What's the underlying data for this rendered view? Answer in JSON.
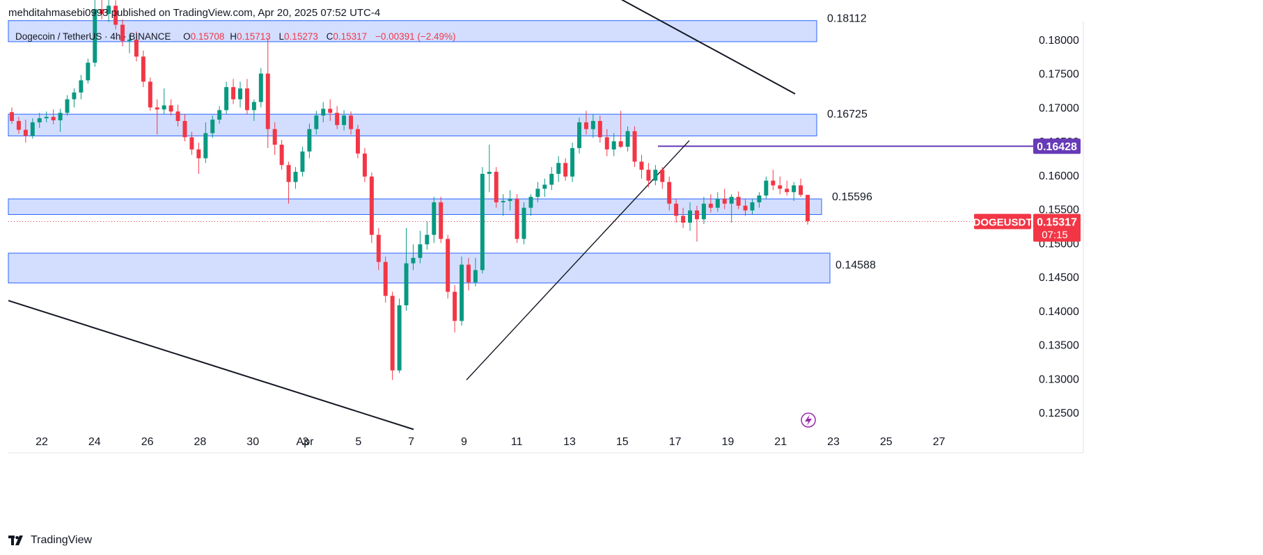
{
  "header": {
    "published_by": "mehditahmasebi0993 published on TradingView.com, Apr 20, 2025 07:52 UTC-4"
  },
  "legend": {
    "symbol": "Dogecoin / TetherUS · 4h · BINANCE",
    "o_label": "O",
    "o_value": "0.15708",
    "h_label": "H",
    "h_value": "0.15713",
    "l_label": "L",
    "l_value": "0.15273",
    "c_label": "C",
    "c_value": "0.15317",
    "change": "−0.00391 (−2.49%)"
  },
  "chart_data": {
    "type": "candlestick",
    "symbol": "DOGEUSDT",
    "ylim": [
      0.1215,
      0.1855
    ],
    "y_ticks": [
      "0.18000",
      "0.17500",
      "0.17000",
      "0.16500",
      "0.16000",
      "0.15500",
      "0.15000",
      "0.14500",
      "0.14000",
      "0.13500",
      "0.13000",
      "0.12500"
    ],
    "x_ticks": [
      "22",
      "24",
      "26",
      "28",
      "30",
      "Apr",
      "3",
      "5",
      "7",
      "9",
      "11",
      "13",
      "15",
      "17",
      "19",
      "21",
      "23",
      "25",
      "27"
    ],
    "zones": [
      {
        "from": 0.1797,
        "to": 0.1828,
        "label": "0.18112"
      },
      {
        "from": 0.1658,
        "to": 0.169,
        "label": "0.16725"
      },
      {
        "from": 0.1542,
        "to": 0.1565,
        "label": "0.15596"
      },
      {
        "from": 0.1441,
        "to": 0.1485,
        "label": "0.14588"
      }
    ],
    "horizontal_line": {
      "value": 0.16428,
      "label": "0.16428",
      "color": "#673ab7"
    },
    "last_price": {
      "value": 0.15317,
      "label": "0.15317",
      "symbol": "DOGEUSDT",
      "countdown": "07:15",
      "color": "#f23645"
    },
    "up_color": "#089981",
    "down_color": "#f23645",
    "candles": [
      {
        "o": 0.1693,
        "h": 0.17,
        "l": 0.1676,
        "c": 0.168
      },
      {
        "o": 0.168,
        "h": 0.1686,
        "l": 0.1661,
        "c": 0.1667
      },
      {
        "o": 0.1667,
        "h": 0.1682,
        "l": 0.1648,
        "c": 0.1658
      },
      {
        "o": 0.1658,
        "h": 0.1684,
        "l": 0.1654,
        "c": 0.1678
      },
      {
        "o": 0.1678,
        "h": 0.1692,
        "l": 0.167,
        "c": 0.1684
      },
      {
        "o": 0.1684,
        "h": 0.1694,
        "l": 0.1678,
        "c": 0.1686
      },
      {
        "o": 0.1686,
        "h": 0.1697,
        "l": 0.1675,
        "c": 0.1681
      },
      {
        "o": 0.1681,
        "h": 0.1698,
        "l": 0.1664,
        "c": 0.1692
      },
      {
        "o": 0.1692,
        "h": 0.1718,
        "l": 0.1688,
        "c": 0.1712
      },
      {
        "o": 0.1712,
        "h": 0.1728,
        "l": 0.17,
        "c": 0.1722
      },
      {
        "o": 0.1722,
        "h": 0.1748,
        "l": 0.1712,
        "c": 0.174
      },
      {
        "o": 0.174,
        "h": 0.1772,
        "l": 0.1735,
        "c": 0.1766
      },
      {
        "o": 0.1766,
        "h": 0.186,
        "l": 0.176,
        "c": 0.1845
      },
      {
        "o": 0.1845,
        "h": 0.1865,
        "l": 0.183,
        "c": 0.1838
      },
      {
        "o": 0.1838,
        "h": 0.1862,
        "l": 0.1826,
        "c": 0.185
      },
      {
        "o": 0.185,
        "h": 0.1858,
        "l": 0.1815,
        "c": 0.1822
      },
      {
        "o": 0.1822,
        "h": 0.183,
        "l": 0.179,
        "c": 0.1798
      },
      {
        "o": 0.1798,
        "h": 0.1808,
        "l": 0.178,
        "c": 0.18
      },
      {
        "o": 0.18,
        "h": 0.1812,
        "l": 0.1768,
        "c": 0.1775
      },
      {
        "o": 0.1775,
        "h": 0.1784,
        "l": 0.173,
        "c": 0.1738
      },
      {
        "o": 0.1738,
        "h": 0.1744,
        "l": 0.1695,
        "c": 0.17
      },
      {
        "o": 0.17,
        "h": 0.1712,
        "l": 0.166,
        "c": 0.1697
      },
      {
        "o": 0.1697,
        "h": 0.1728,
        "l": 0.169,
        "c": 0.1703
      },
      {
        "o": 0.1703,
        "h": 0.1712,
        "l": 0.1688,
        "c": 0.1694
      },
      {
        "o": 0.1694,
        "h": 0.1704,
        "l": 0.1672,
        "c": 0.168
      },
      {
        "o": 0.168,
        "h": 0.169,
        "l": 0.165,
        "c": 0.1656
      },
      {
        "o": 0.1656,
        "h": 0.1664,
        "l": 0.163,
        "c": 0.1638
      },
      {
        "o": 0.1638,
        "h": 0.1648,
        "l": 0.1602,
        "c": 0.1625
      },
      {
        "o": 0.1625,
        "h": 0.1678,
        "l": 0.1618,
        "c": 0.1662
      },
      {
        "o": 0.1662,
        "h": 0.1688,
        "l": 0.1655,
        "c": 0.1682
      },
      {
        "o": 0.1682,
        "h": 0.1702,
        "l": 0.1676,
        "c": 0.1696
      },
      {
        "o": 0.1696,
        "h": 0.1738,
        "l": 0.169,
        "c": 0.173
      },
      {
        "o": 0.173,
        "h": 0.1742,
        "l": 0.1705,
        "c": 0.1712
      },
      {
        "o": 0.1712,
        "h": 0.1738,
        "l": 0.17,
        "c": 0.1728
      },
      {
        "o": 0.1728,
        "h": 0.1742,
        "l": 0.169,
        "c": 0.1696
      },
      {
        "o": 0.1696,
        "h": 0.1712,
        "l": 0.168,
        "c": 0.1708
      },
      {
        "o": 0.1708,
        "h": 0.1758,
        "l": 0.17,
        "c": 0.175
      },
      {
        "o": 0.175,
        "h": 0.1802,
        "l": 0.164,
        "c": 0.1668
      },
      {
        "o": 0.1668,
        "h": 0.1678,
        "l": 0.163,
        "c": 0.1645
      },
      {
        "o": 0.1645,
        "h": 0.1652,
        "l": 0.1608,
        "c": 0.1615
      },
      {
        "o": 0.1615,
        "h": 0.162,
        "l": 0.1558,
        "c": 0.159
      },
      {
        "o": 0.159,
        "h": 0.1612,
        "l": 0.158,
        "c": 0.1605
      },
      {
        "o": 0.1605,
        "h": 0.1642,
        "l": 0.1598,
        "c": 0.1635
      },
      {
        "o": 0.1635,
        "h": 0.1676,
        "l": 0.1625,
        "c": 0.1668
      },
      {
        "o": 0.1668,
        "h": 0.1695,
        "l": 0.166,
        "c": 0.1688
      },
      {
        "o": 0.1688,
        "h": 0.1708,
        "l": 0.1678,
        "c": 0.1698
      },
      {
        "o": 0.1698,
        "h": 0.1712,
        "l": 0.168,
        "c": 0.1692
      },
      {
        "o": 0.1692,
        "h": 0.1702,
        "l": 0.1668,
        "c": 0.1674
      },
      {
        "o": 0.1674,
        "h": 0.1696,
        "l": 0.1666,
        "c": 0.1688
      },
      {
        "o": 0.1688,
        "h": 0.1694,
        "l": 0.166,
        "c": 0.1668
      },
      {
        "o": 0.1668,
        "h": 0.1674,
        "l": 0.1625,
        "c": 0.1632
      },
      {
        "o": 0.1632,
        "h": 0.164,
        "l": 0.159,
        "c": 0.1598
      },
      {
        "o": 0.1598,
        "h": 0.1604,
        "l": 0.15,
        "c": 0.1512
      },
      {
        "o": 0.1512,
        "h": 0.1522,
        "l": 0.146,
        "c": 0.1472
      },
      {
        "o": 0.1472,
        "h": 0.148,
        "l": 0.1412,
        "c": 0.1422
      },
      {
        "o": 0.1422,
        "h": 0.1428,
        "l": 0.1298,
        "c": 0.1312
      },
      {
        "o": 0.1312,
        "h": 0.1418,
        "l": 0.1308,
        "c": 0.1408
      },
      {
        "o": 0.1408,
        "h": 0.1522,
        "l": 0.14,
        "c": 0.147
      },
      {
        "o": 0.147,
        "h": 0.1498,
        "l": 0.146,
        "c": 0.1478
      },
      {
        "o": 0.1478,
        "h": 0.1518,
        "l": 0.147,
        "c": 0.1498
      },
      {
        "o": 0.1498,
        "h": 0.1532,
        "l": 0.149,
        "c": 0.1512
      },
      {
        "o": 0.1512,
        "h": 0.1568,
        "l": 0.15,
        "c": 0.156
      },
      {
        "o": 0.156,
        "h": 0.1568,
        "l": 0.15,
        "c": 0.1506
      },
      {
        "o": 0.1506,
        "h": 0.1512,
        "l": 0.1418,
        "c": 0.1428
      },
      {
        "o": 0.1428,
        "h": 0.1438,
        "l": 0.1368,
        "c": 0.1385
      },
      {
        "o": 0.1385,
        "h": 0.148,
        "l": 0.1378,
        "c": 0.1468
      },
      {
        "o": 0.1468,
        "h": 0.1478,
        "l": 0.143,
        "c": 0.1442
      },
      {
        "o": 0.1442,
        "h": 0.1478,
        "l": 0.1436,
        "c": 0.146
      },
      {
        "o": 0.146,
        "h": 0.1612,
        "l": 0.1455,
        "c": 0.1602
      },
      {
        "o": 0.1602,
        "h": 0.1645,
        "l": 0.1575,
        "c": 0.1605
      },
      {
        "o": 0.1605,
        "h": 0.1612,
        "l": 0.1552,
        "c": 0.156
      },
      {
        "o": 0.156,
        "h": 0.1572,
        "l": 0.154,
        "c": 0.1562
      },
      {
        "o": 0.1562,
        "h": 0.1578,
        "l": 0.1548,
        "c": 0.1565
      },
      {
        "o": 0.1565,
        "h": 0.1572,
        "l": 0.15,
        "c": 0.1506
      },
      {
        "o": 0.1506,
        "h": 0.156,
        "l": 0.1498,
        "c": 0.1552
      },
      {
        "o": 0.1552,
        "h": 0.1572,
        "l": 0.154,
        "c": 0.1568
      },
      {
        "o": 0.1568,
        "h": 0.159,
        "l": 0.156,
        "c": 0.158
      },
      {
        "o": 0.158,
        "h": 0.1595,
        "l": 0.1568,
        "c": 0.1586
      },
      {
        "o": 0.1586,
        "h": 0.1612,
        "l": 0.1578,
        "c": 0.1602
      },
      {
        "o": 0.1602,
        "h": 0.1628,
        "l": 0.159,
        "c": 0.1618
      },
      {
        "o": 0.1618,
        "h": 0.1625,
        "l": 0.1592,
        "c": 0.1598
      },
      {
        "o": 0.1598,
        "h": 0.1648,
        "l": 0.159,
        "c": 0.164
      },
      {
        "o": 0.164,
        "h": 0.1685,
        "l": 0.1632,
        "c": 0.1678
      },
      {
        "o": 0.1678,
        "h": 0.1695,
        "l": 0.166,
        "c": 0.1668
      },
      {
        "o": 0.1668,
        "h": 0.169,
        "l": 0.1655,
        "c": 0.168
      },
      {
        "o": 0.168,
        "h": 0.1688,
        "l": 0.1648,
        "c": 0.1656
      },
      {
        "o": 0.1656,
        "h": 0.1668,
        "l": 0.1628,
        "c": 0.1638
      },
      {
        "o": 0.1638,
        "h": 0.1662,
        "l": 0.1628,
        "c": 0.165
      },
      {
        "o": 0.165,
        "h": 0.1695,
        "l": 0.164,
        "c": 0.1642
      },
      {
        "o": 0.1642,
        "h": 0.1672,
        "l": 0.1635,
        "c": 0.1665
      },
      {
        "o": 0.1665,
        "h": 0.1672,
        "l": 0.1612,
        "c": 0.162
      },
      {
        "o": 0.162,
        "h": 0.163,
        "l": 0.1595,
        "c": 0.1608
      },
      {
        "o": 0.1608,
        "h": 0.1618,
        "l": 0.1582,
        "c": 0.1592
      },
      {
        "o": 0.1592,
        "h": 0.1615,
        "l": 0.1585,
        "c": 0.1608
      },
      {
        "o": 0.1608,
        "h": 0.1612,
        "l": 0.158,
        "c": 0.159
      },
      {
        "o": 0.159,
        "h": 0.1598,
        "l": 0.1548,
        "c": 0.1558
      },
      {
        "o": 0.1558,
        "h": 0.1565,
        "l": 0.153,
        "c": 0.154
      },
      {
        "o": 0.154,
        "h": 0.1552,
        "l": 0.1522,
        "c": 0.153
      },
      {
        "o": 0.153,
        "h": 0.156,
        "l": 0.1518,
        "c": 0.1548
      },
      {
        "o": 0.1548,
        "h": 0.1555,
        "l": 0.1502,
        "c": 0.1535
      },
      {
        "o": 0.1535,
        "h": 0.1568,
        "l": 0.1528,
        "c": 0.1558
      },
      {
        "o": 0.1558,
        "h": 0.1572,
        "l": 0.1545,
        "c": 0.1552
      },
      {
        "o": 0.1552,
        "h": 0.1575,
        "l": 0.1546,
        "c": 0.1565
      },
      {
        "o": 0.1565,
        "h": 0.158,
        "l": 0.155,
        "c": 0.1558
      },
      {
        "o": 0.1558,
        "h": 0.1572,
        "l": 0.153,
        "c": 0.1568
      },
      {
        "o": 0.1568,
        "h": 0.1576,
        "l": 0.155,
        "c": 0.1555
      },
      {
        "o": 0.1555,
        "h": 0.1565,
        "l": 0.154,
        "c": 0.1548
      },
      {
        "o": 0.1548,
        "h": 0.1565,
        "l": 0.1542,
        "c": 0.156
      },
      {
        "o": 0.156,
        "h": 0.1575,
        "l": 0.1552,
        "c": 0.157
      },
      {
        "o": 0.157,
        "h": 0.1598,
        "l": 0.1565,
        "c": 0.1592
      },
      {
        "o": 0.1592,
        "h": 0.1608,
        "l": 0.1578,
        "c": 0.1585
      },
      {
        "o": 0.1585,
        "h": 0.1598,
        "l": 0.1572,
        "c": 0.158
      },
      {
        "o": 0.158,
        "h": 0.1592,
        "l": 0.157,
        "c": 0.1575
      },
      {
        "o": 0.1575,
        "h": 0.159,
        "l": 0.1562,
        "c": 0.1585
      },
      {
        "o": 0.1585,
        "h": 0.1595,
        "l": 0.1568,
        "c": 0.1571
      },
      {
        "o": 0.1571,
        "h": 0.1571,
        "l": 0.1527,
        "c": 0.1532
      }
    ],
    "trendlines": [
      {
        "name": "upper-descending",
        "from": {
          "x": 850,
          "y": 0.1883
        },
        "to": {
          "x": 1142,
          "y": 0.172
        }
      },
      {
        "name": "lower-descending",
        "from": {
          "x": 12,
          "y": 0.1415
        },
        "to": {
          "x": 594,
          "y": 0.1225
        }
      },
      {
        "name": "ascending",
        "from": {
          "x": 670,
          "y": 0.1298
        },
        "to": {
          "x": 990,
          "y": 0.1651
        }
      }
    ]
  },
  "footer": {
    "brand": "TradingView"
  }
}
